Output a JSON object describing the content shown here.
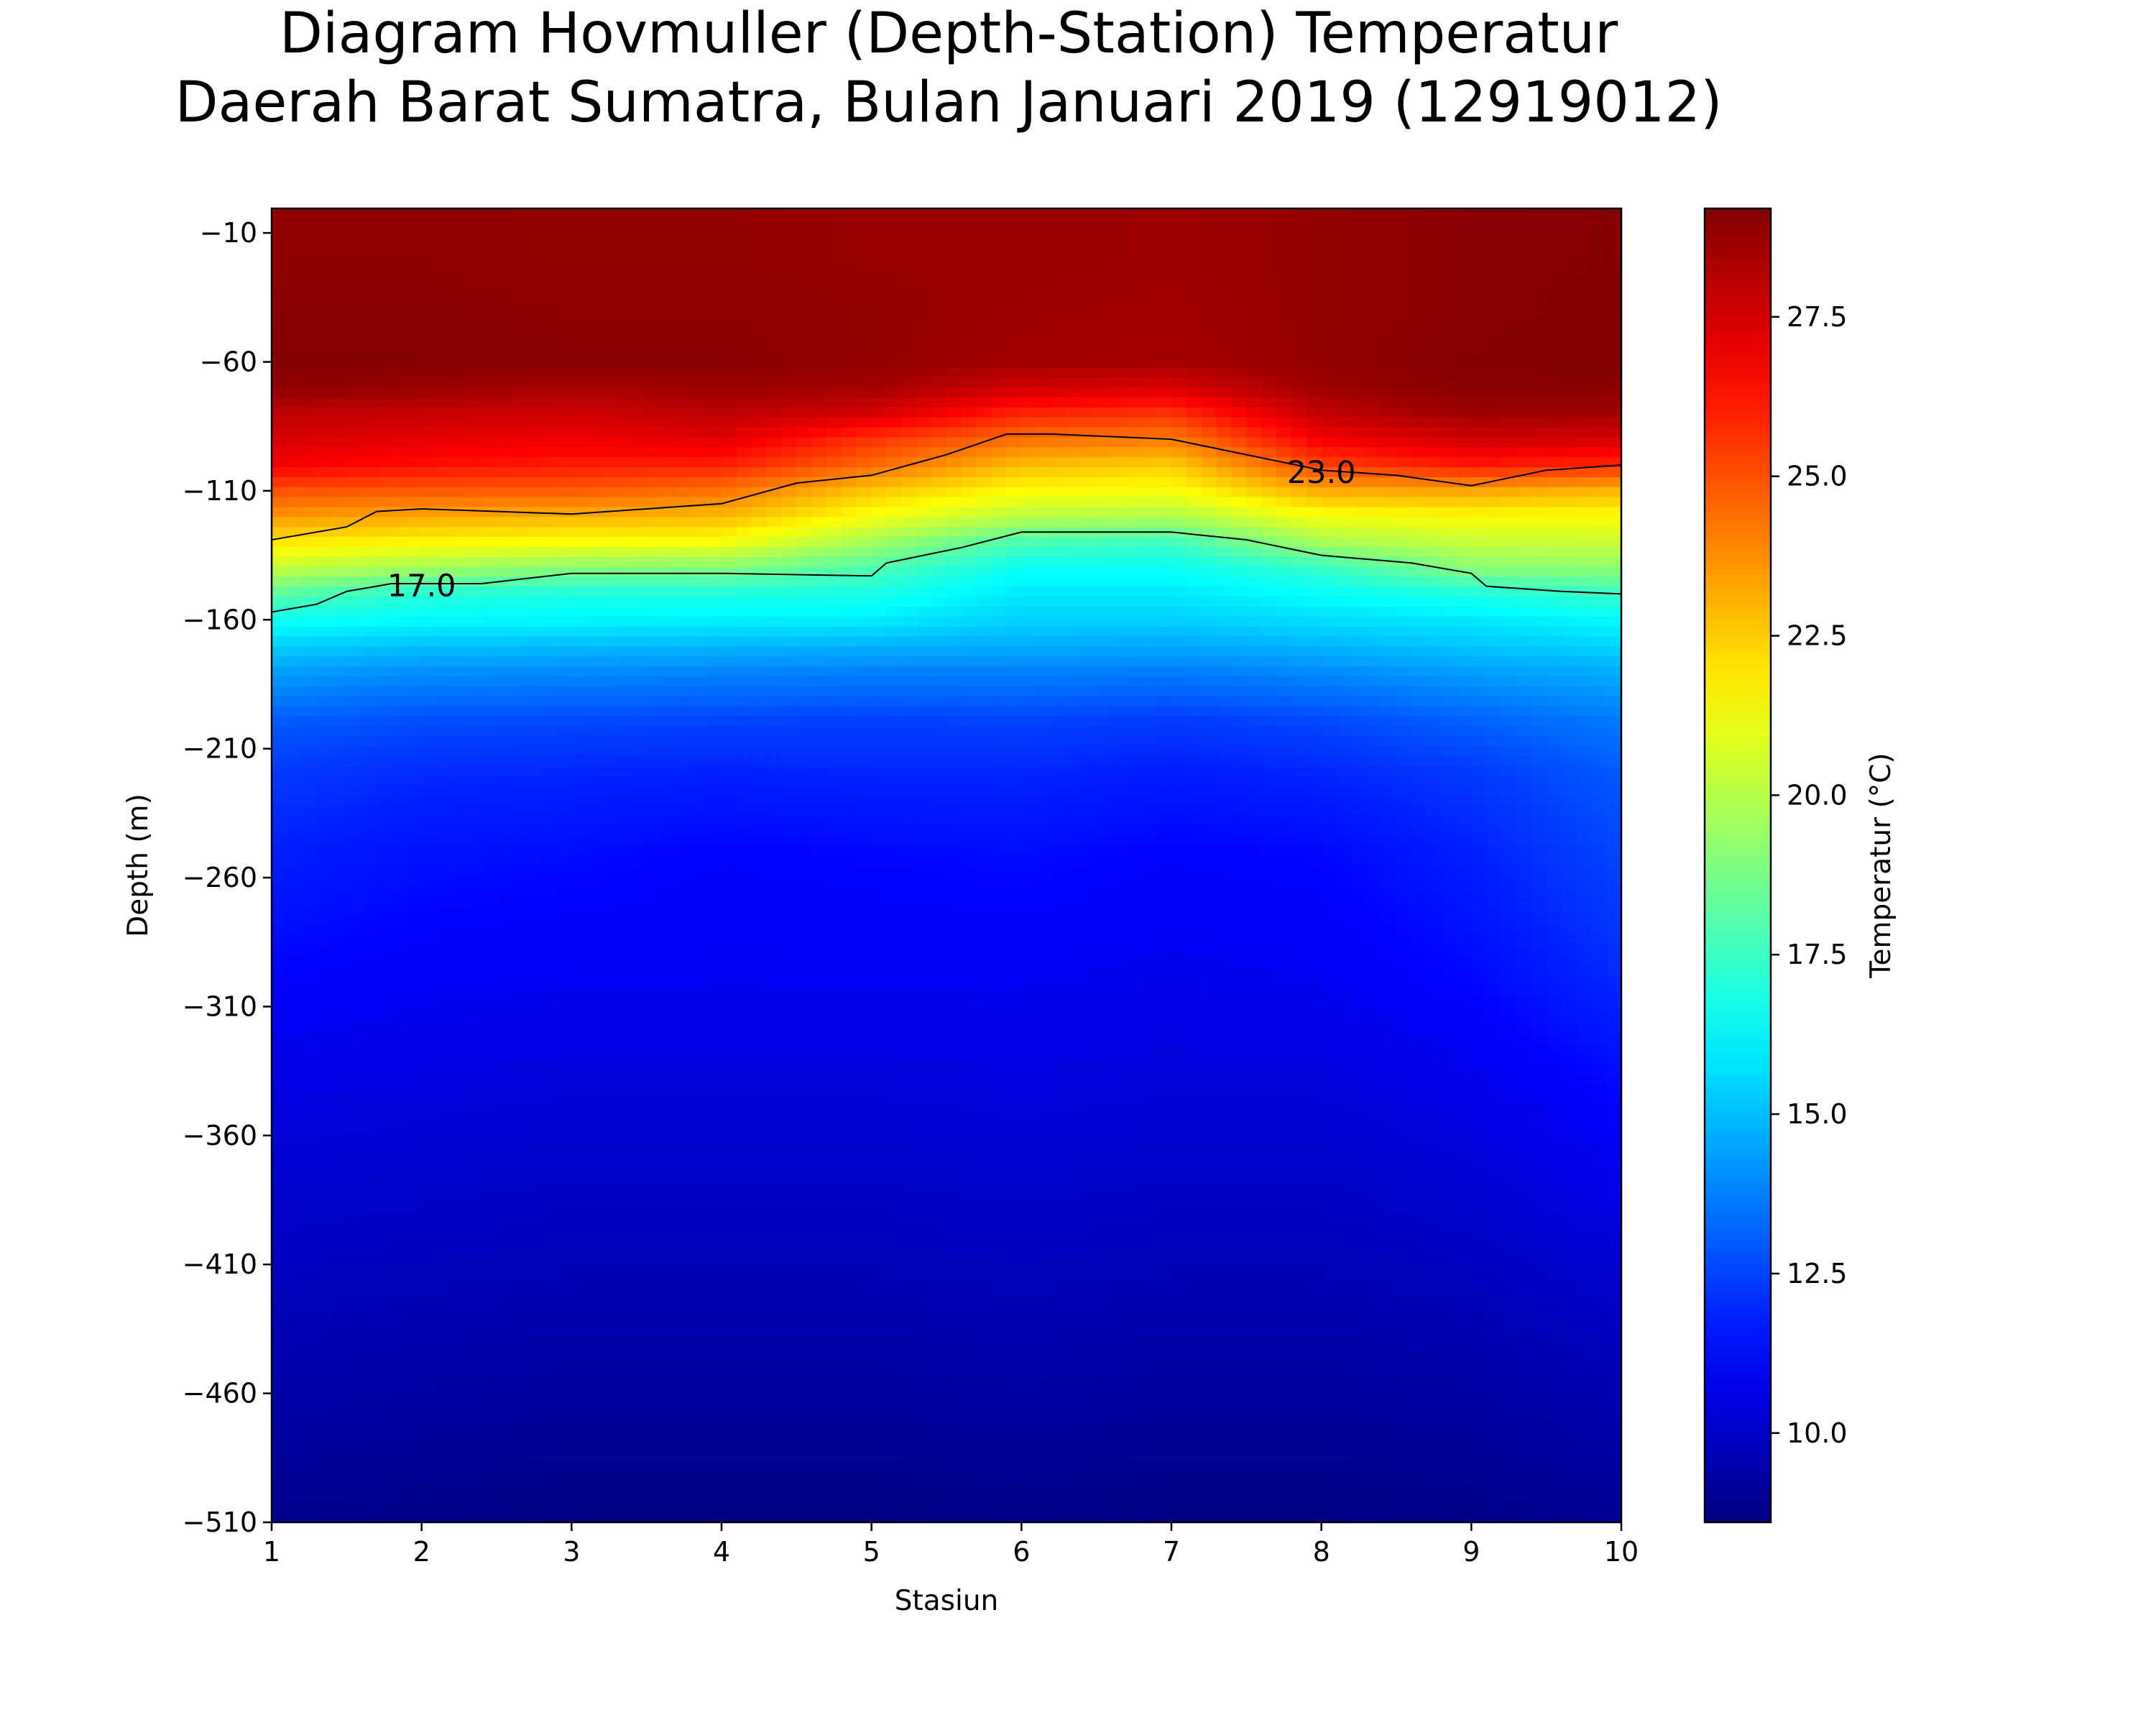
{
  "title_line1": "Diagram Hovmuller (Depth-Station) Temperatur",
  "title_line2": "Daerah Barat Sumatra, Bulan Januari 2019 (12919012)",
  "chart_data": {
    "type": "heatmap",
    "xlabel": "Stasiun",
    "ylabel": "Depth (m)",
    "colorbar_label": "Temperatur (°C)",
    "colormap": "jet",
    "xlim": [
      1,
      10
    ],
    "ylim": [
      -510,
      0
    ],
    "x_ticks": [
      1,
      2,
      3,
      4,
      5,
      6,
      7,
      8,
      9,
      10
    ],
    "y_ticks": [
      -10,
      -60,
      -110,
      -160,
      -210,
      -260,
      -310,
      -360,
      -410,
      -460,
      -510
    ],
    "y_tick_labels": [
      "−10",
      "−60",
      "−110",
      "−160",
      "−210",
      "−260",
      "−310",
      "−360",
      "−410",
      "−460",
      "−510"
    ],
    "colorbar_range": [
      8.6,
      29.2
    ],
    "colorbar_ticks": [
      10.0,
      12.5,
      15.0,
      17.5,
      20.0,
      22.5,
      25.0,
      27.5
    ],
    "colorbar_tick_labels": [
      "10.0",
      "12.5",
      "15.0",
      "17.5",
      "20.0",
      "22.5",
      "25.0",
      "27.5"
    ],
    "stations": [
      1,
      2,
      3,
      4,
      5,
      6,
      7,
      8,
      9,
      10
    ],
    "depths": [
      0,
      -20,
      -40,
      -60,
      -70,
      -80,
      -90,
      -100,
      -110,
      -120,
      -130,
      -140,
      -150,
      -160,
      -170,
      -180,
      -200,
      -220,
      -250,
      -300,
      -350,
      -400,
      -450,
      -500,
      -510
    ],
    "temperature": [
      [
        28.9,
        28.9,
        28.8,
        28.8,
        28.7,
        28.7,
        28.6,
        28.8,
        29.0,
        29.1
      ],
      [
        28.9,
        28.9,
        28.8,
        28.8,
        28.7,
        28.7,
        28.6,
        28.8,
        29.0,
        29.1
      ],
      [
        29.0,
        29.0,
        28.9,
        28.9,
        28.8,
        28.6,
        28.5,
        28.8,
        29.0,
        29.2
      ],
      [
        29.1,
        29.1,
        29.0,
        29.0,
        28.8,
        28.5,
        28.4,
        28.8,
        29.1,
        29.2
      ],
      [
        28.9,
        28.7,
        28.4,
        28.6,
        28.5,
        27.6,
        27.4,
        28.6,
        29.0,
        29.0
      ],
      [
        28.0,
        27.8,
        27.6,
        28.0,
        27.5,
        25.9,
        25.6,
        27.9,
        28.6,
        28.5
      ],
      [
        27.4,
        27.1,
        26.9,
        27.2,
        25.6,
        24.4,
        24.1,
        26.8,
        27.6,
        27.5
      ],
      [
        26.8,
        26.4,
        26.1,
        26.0,
        24.5,
        22.8,
        22.5,
        25.3,
        26.2,
        25.8
      ],
      [
        25.0,
        24.8,
        24.8,
        24.3,
        22.6,
        21.5,
        21.3,
        23.2,
        23.3,
        22.9
      ],
      [
        23.6,
        23.2,
        23.0,
        22.9,
        21.3,
        20.1,
        19.9,
        21.3,
        21.5,
        21.4
      ],
      [
        21.9,
        21.6,
        21.4,
        21.3,
        19.6,
        17.8,
        17.6,
        19.7,
        20.3,
        20.4
      ],
      [
        20.3,
        19.6,
        19.1,
        19.0,
        17.9,
        16.5,
        16.5,
        17.4,
        19.1,
        19.2
      ],
      [
        18.2,
        17.1,
        16.9,
        16.9,
        16.8,
        15.9,
        15.9,
        16.4,
        16.9,
        17.5
      ],
      [
        16.6,
        16.3,
        16.2,
        16.1,
        16.0,
        15.4,
        15.4,
        15.7,
        15.9,
        16.3
      ],
      [
        15.4,
        15.1,
        15.0,
        14.9,
        14.8,
        14.7,
        14.6,
        14.9,
        15.2,
        15.5
      ],
      [
        14.4,
        14.1,
        14.0,
        13.9,
        13.8,
        13.8,
        13.7,
        14.0,
        14.4,
        14.7
      ],
      [
        13.0,
        12.7,
        12.6,
        12.5,
        12.4,
        12.5,
        12.3,
        12.6,
        13.1,
        13.6
      ],
      [
        12.3,
        12.0,
        11.9,
        11.8,
        11.9,
        11.9,
        11.7,
        11.9,
        12.3,
        13.0
      ],
      [
        11.8,
        11.5,
        11.4,
        11.2,
        11.3,
        11.4,
        11.2,
        11.3,
        11.8,
        12.6
      ],
      [
        11.2,
        11.0,
        10.9,
        10.9,
        10.9,
        10.9,
        10.8,
        10.9,
        11.3,
        12.0
      ],
      [
        10.5,
        10.4,
        10.3,
        10.3,
        10.3,
        10.4,
        10.3,
        10.3,
        10.6,
        11.2
      ],
      [
        10.0,
        9.9,
        9.8,
        9.8,
        9.8,
        9.9,
        9.8,
        9.8,
        10.0,
        10.4
      ],
      [
        9.5,
        9.4,
        9.3,
        9.3,
        9.3,
        9.4,
        9.3,
        9.3,
        9.4,
        9.7
      ],
      [
        9.0,
        8.9,
        8.8,
        8.8,
        8.8,
        8.9,
        8.8,
        8.8,
        8.9,
        9.1
      ],
      [
        8.9,
        8.8,
        8.7,
        8.7,
        8.7,
        8.8,
        8.7,
        8.7,
        8.8,
        9.0
      ]
    ],
    "contour_23": [
      [
        1.0,
        -129
      ],
      [
        1.5,
        -124
      ],
      [
        1.7,
        -118
      ],
      [
        2.0,
        -117
      ],
      [
        3.0,
        -119
      ],
      [
        3.5,
        -117
      ],
      [
        4.0,
        -115
      ],
      [
        4.5,
        -107
      ],
      [
        5.0,
        -104
      ],
      [
        5.5,
        -96
      ],
      [
        5.9,
        -88
      ],
      [
        6.2,
        -88
      ],
      [
        7.0,
        -90
      ],
      [
        7.5,
        -96
      ],
      [
        8.0,
        -102
      ],
      [
        8.5,
        -104
      ],
      [
        9.0,
        -108
      ],
      [
        9.5,
        -102
      ],
      [
        10.0,
        -100
      ]
    ],
    "contour_17": [
      [
        1.0,
        -157
      ],
      [
        1.3,
        -154
      ],
      [
        1.5,
        -149
      ],
      [
        1.8,
        -146
      ],
      [
        2.4,
        -146
      ],
      [
        3.0,
        -142
      ],
      [
        4.0,
        -142
      ],
      [
        5.0,
        -143
      ],
      [
        5.1,
        -138
      ],
      [
        5.6,
        -132
      ],
      [
        6.0,
        -126
      ],
      [
        7.0,
        -126
      ],
      [
        7.5,
        -129
      ],
      [
        8.0,
        -135
      ],
      [
        8.6,
        -138
      ],
      [
        9.0,
        -142
      ],
      [
        9.1,
        -147
      ],
      [
        9.6,
        -149
      ],
      [
        10.0,
        -150
      ]
    ],
    "contour_labels": [
      {
        "text": "17.0",
        "x": 2.0,
        "y": -147
      },
      {
        "text": "23.0",
        "x": 8.0,
        "y": -103
      }
    ]
  }
}
